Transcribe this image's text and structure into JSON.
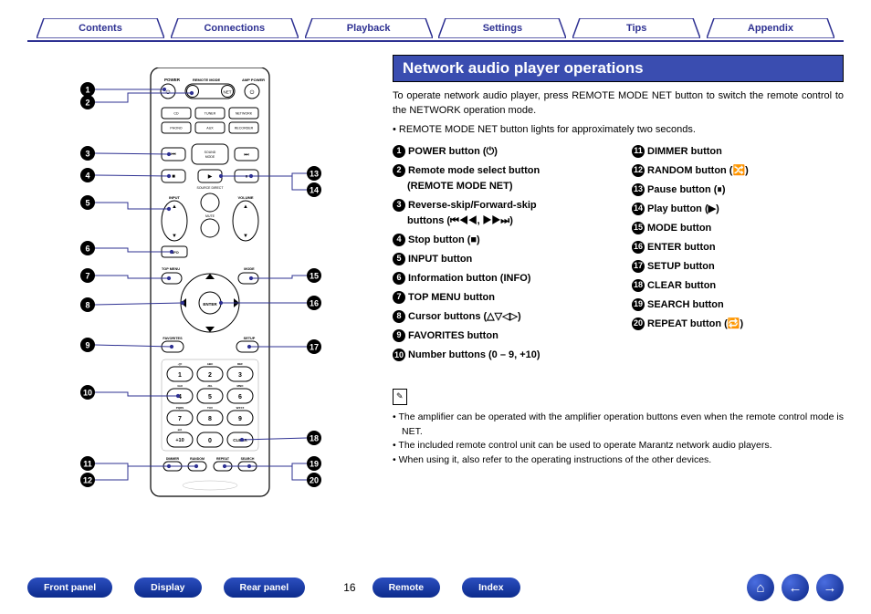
{
  "colors": {
    "brand": "#2e3192",
    "header_bg": "#3a4db0",
    "nav_grad_top": "#4a6de0",
    "nav_grad_bot": "#0a2585"
  },
  "top_tabs": [
    "Contents",
    "Connections",
    "Playback",
    "Settings",
    "Tips",
    "Appendix"
  ],
  "section_title": "Network audio player operations",
  "intro": "To operate network audio player, press REMOTE MODE NET button to switch the remote control to the NETWORK operation mode.",
  "intro_bullet": "• REMOTE MODE NET button lights for approximately two seconds.",
  "left_callouts": [
    {
      "n": 1
    },
    {
      "n": 2
    },
    {
      "n": 3
    },
    {
      "n": 4
    },
    {
      "n": 5
    },
    {
      "n": 6
    },
    {
      "n": 7
    },
    {
      "n": 8
    },
    {
      "n": 9
    },
    {
      "n": 10
    },
    {
      "n": 11
    },
    {
      "n": 12
    }
  ],
  "right_callouts": [
    {
      "n": 13
    },
    {
      "n": 14
    },
    {
      "n": 15
    },
    {
      "n": 16
    },
    {
      "n": 17
    },
    {
      "n": 18
    },
    {
      "n": 19
    },
    {
      "n": 20
    }
  ],
  "items_col1": [
    {
      "n": 1,
      "label": "POWER button (⏻)"
    },
    {
      "n": 2,
      "label": "Remote mode select button",
      "sub": "(REMOTE MODE NET)"
    },
    {
      "n": 3,
      "label": "Reverse-skip/Forward-skip",
      "sub": "buttons (⏮◀◀, ▶▶⏭)"
    },
    {
      "n": 4,
      "label": "Stop button (■)"
    },
    {
      "n": 5,
      "label": "INPUT button"
    },
    {
      "n": 6,
      "label": "Information button (INFO)"
    },
    {
      "n": 7,
      "label": "TOP MENU button"
    },
    {
      "n": 8,
      "label": "Cursor buttons (△▽◁▷)"
    },
    {
      "n": 9,
      "label": "FAVORITES button"
    },
    {
      "n": 10,
      "label": "Number buttons (0 – 9, +10)"
    }
  ],
  "items_col2": [
    {
      "n": 11,
      "label": "DIMMER button"
    },
    {
      "n": 12,
      "label": "RANDOM button (🔀)"
    },
    {
      "n": 13,
      "label": "Pause button (⏸)"
    },
    {
      "n": 14,
      "label": "Play button (▶)"
    },
    {
      "n": 15,
      "label": "MODE button"
    },
    {
      "n": 16,
      "label": "ENTER button"
    },
    {
      "n": 17,
      "label": "SETUP button"
    },
    {
      "n": 18,
      "label": "CLEAR button"
    },
    {
      "n": 19,
      "label": "SEARCH button"
    },
    {
      "n": 20,
      "label": "REPEAT button (🔁)"
    }
  ],
  "note_icon": "✎",
  "notes": [
    "The amplifier can be operated with the amplifier operation buttons even when the remote control mode is NET.",
    "The included remote control unit can be used to operate Marantz network audio players.",
    "When using it, also refer to the operating instructions of the other devices."
  ],
  "footer_buttons": [
    "Front panel",
    "Display",
    "Rear panel"
  ],
  "page_number": "16",
  "footer_buttons_right": [
    "Remote",
    "Index"
  ],
  "nav_icons": [
    "home",
    "left",
    "right"
  ],
  "remote": {
    "top_labels": {
      "power": "POWER",
      "remote_mode": "REMOTE MODE",
      "amp_power": "AMP POWER"
    },
    "mode_row": [
      "CD",
      "TUNER",
      "NETWORK"
    ],
    "mode_row2": [
      "PHONO",
      "AUX",
      "RECORDER"
    ],
    "sound_mode": "SOUND MODE",
    "source_direct": "SOURCE DIRECT",
    "input": "INPUT",
    "volume": "VOLUME",
    "mute": "MUTE",
    "info": "INFO",
    "top_menu": "TOP MENU",
    "mode": "MODE",
    "enter": "ENTER",
    "favorites": "FAVORITES",
    "setup": "SETUP",
    "keypad": [
      [
        "1",
        "2",
        "3"
      ],
      [
        "4",
        "5",
        "6"
      ],
      [
        "7",
        "8",
        "9"
      ],
      [
        "+10",
        "0",
        "CLEAR"
      ]
    ],
    "keypad_abc": [
      [
        "",
        ".@!",
        "ABC",
        "DEF"
      ],
      [
        "",
        "GHI",
        "JKL",
        "MNO"
      ],
      [
        "",
        "PQRS",
        "TUV",
        "WXYZ"
      ],
      [
        "",
        "a/A",
        "",
        "   "
      ]
    ],
    "bottom_row": [
      "DIMMER",
      "RANDOM",
      "REPEAT",
      "SEARCH"
    ]
  }
}
